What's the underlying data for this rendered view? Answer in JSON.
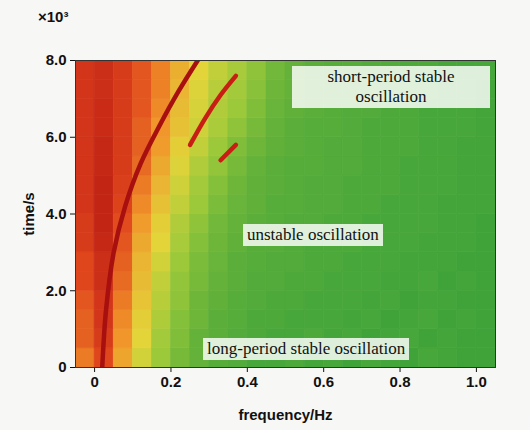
{
  "chart_data": {
    "type": "heatmap",
    "x_label": "frequency/Hz",
    "y_label": "time/s",
    "y_multiplier": "×10³",
    "xlim": [
      -0.05,
      1.05
    ],
    "xticks": [
      0,
      0.2,
      0.4,
      0.6,
      0.8,
      {
        "value": 1,
        "label": "1.0"
      }
    ],
    "ylim": [
      0,
      8
    ],
    "yticks": [
      0,
      {
        "value": 2,
        "label": "2.0"
      },
      {
        "value": 4,
        "label": "4.0"
      },
      {
        "value": 6,
        "label": "6.0"
      },
      {
        "value": 8,
        "label": "8.0"
      }
    ],
    "x_edges": [
      -0.05,
      0.0,
      0.05,
      0.1,
      0.15,
      0.2,
      0.25,
      0.3,
      0.35,
      0.4,
      0.45,
      0.5,
      0.55,
      0.6,
      0.65,
      0.7,
      0.75,
      0.8,
      0.85,
      0.9,
      0.95,
      1.0,
      1.05
    ],
    "y_edges": [
      0,
      0.5,
      1,
      1.5,
      2,
      2.5,
      3,
      3.5,
      4,
      4.5,
      5,
      5.5,
      6,
      6.5,
      7,
      7.5,
      8
    ],
    "cells": [
      [
        0.75,
        0.85,
        0.65,
        0.45,
        0.3,
        0.22,
        0.18,
        0.15,
        0.14,
        0.12,
        0.12,
        0.13,
        0.11,
        0.12,
        0.1,
        0.12,
        0.11,
        0.1,
        0.12,
        0.11,
        0.1,
        0.1
      ],
      [
        0.8,
        0.88,
        0.7,
        0.5,
        0.32,
        0.24,
        0.18,
        0.16,
        0.14,
        0.13,
        0.12,
        0.12,
        0.13,
        0.11,
        0.12,
        0.1,
        0.11,
        0.12,
        0.1,
        0.11,
        0.1,
        0.1
      ],
      [
        0.8,
        0.9,
        0.72,
        0.52,
        0.35,
        0.25,
        0.2,
        0.16,
        0.15,
        0.13,
        0.13,
        0.12,
        0.12,
        0.12,
        0.11,
        0.12,
        0.1,
        0.11,
        0.12,
        0.1,
        0.11,
        0.1
      ],
      [
        0.82,
        0.9,
        0.75,
        0.55,
        0.38,
        0.27,
        0.2,
        0.17,
        0.15,
        0.14,
        0.13,
        0.13,
        0.12,
        0.12,
        0.12,
        0.11,
        0.12,
        0.1,
        0.11,
        0.11,
        0.1,
        0.1
      ],
      [
        0.85,
        0.92,
        0.78,
        0.58,
        0.4,
        0.28,
        0.22,
        0.18,
        0.16,
        0.14,
        0.14,
        0.13,
        0.13,
        0.12,
        0.12,
        0.12,
        0.11,
        0.11,
        0.12,
        0.1,
        0.11,
        0.1
      ],
      [
        0.85,
        0.92,
        0.8,
        0.6,
        0.45,
        0.3,
        0.23,
        0.19,
        0.16,
        0.15,
        0.14,
        0.14,
        0.13,
        0.13,
        0.12,
        0.12,
        0.12,
        0.11,
        0.11,
        0.11,
        0.1,
        0.1
      ],
      [
        0.88,
        0.94,
        0.82,
        0.64,
        0.5,
        0.33,
        0.25,
        0.2,
        0.17,
        0.15,
        0.15,
        0.14,
        0.13,
        0.13,
        0.13,
        0.12,
        0.12,
        0.12,
        0.11,
        0.11,
        0.11,
        0.1
      ],
      [
        0.88,
        0.95,
        0.84,
        0.68,
        0.52,
        0.36,
        0.27,
        0.21,
        0.18,
        0.16,
        0.15,
        0.14,
        0.14,
        0.13,
        0.13,
        0.12,
        0.12,
        0.12,
        0.12,
        0.11,
        0.11,
        0.1
      ],
      [
        0.9,
        0.95,
        0.86,
        0.72,
        0.56,
        0.4,
        0.3,
        0.23,
        0.19,
        0.17,
        0.15,
        0.15,
        0.14,
        0.14,
        0.13,
        0.13,
        0.12,
        0.12,
        0.12,
        0.11,
        0.11,
        0.11
      ],
      [
        0.9,
        0.95,
        0.87,
        0.75,
        0.6,
        0.44,
        0.32,
        0.25,
        0.2,
        0.17,
        0.16,
        0.15,
        0.14,
        0.14,
        0.13,
        0.13,
        0.13,
        0.12,
        0.12,
        0.12,
        0.11,
        0.11
      ],
      [
        0.9,
        0.94,
        0.88,
        0.78,
        0.64,
        0.48,
        0.36,
        0.28,
        0.22,
        0.18,
        0.16,
        0.15,
        0.15,
        0.14,
        0.14,
        0.13,
        0.13,
        0.12,
        0.12,
        0.12,
        0.11,
        0.11
      ],
      [
        0.9,
        0.94,
        0.88,
        0.8,
        0.68,
        0.52,
        0.4,
        0.3,
        0.24,
        0.2,
        0.17,
        0.16,
        0.15,
        0.14,
        0.14,
        0.13,
        0.13,
        0.13,
        0.12,
        0.12,
        0.11,
        0.11
      ],
      [
        0.9,
        0.93,
        0.88,
        0.8,
        0.7,
        0.56,
        0.44,
        0.34,
        0.27,
        0.22,
        0.18,
        0.16,
        0.15,
        0.15,
        0.14,
        0.13,
        0.13,
        0.13,
        0.12,
        0.12,
        0.12,
        0.11
      ],
      [
        0.9,
        0.93,
        0.88,
        0.82,
        0.72,
        0.58,
        0.46,
        0.36,
        0.3,
        0.24,
        0.19,
        0.17,
        0.16,
        0.15,
        0.14,
        0.14,
        0.13,
        0.13,
        0.12,
        0.12,
        0.12,
        0.11
      ],
      [
        0.9,
        0.92,
        0.88,
        0.82,
        0.74,
        0.6,
        0.48,
        0.38,
        0.32,
        0.26,
        0.2,
        0.18,
        0.16,
        0.15,
        0.15,
        0.14,
        0.13,
        0.13,
        0.13,
        0.12,
        0.12,
        0.11
      ],
      [
        0.9,
        0.92,
        0.88,
        0.82,
        0.74,
        0.62,
        0.5,
        0.4,
        0.33,
        0.27,
        0.21,
        0.18,
        0.16,
        0.15,
        0.15,
        0.14,
        0.14,
        0.13,
        0.13,
        0.12,
        0.12,
        0.12
      ]
    ],
    "color_stops": [
      0.1,
      0.3,
      0.5,
      0.7,
      0.85,
      1.0
    ],
    "colors": [
      "#3fa33a",
      "#9cc93a",
      "#e3d43a",
      "#f0962a",
      "#e0461c",
      "#b51412"
    ],
    "ridges": [
      {
        "x": [
          0.02,
          0.03,
          0.05,
          0.08,
          0.12,
          0.17,
          0.22,
          0.27
        ],
        "y": [
          0,
          1.5,
          3,
          4.2,
          5.3,
          6.3,
          7.2,
          8.0
        ],
        "color": "#a80f0f"
      },
      {
        "x": [
          0.25,
          0.29,
          0.33,
          0.37
        ],
        "y": [
          5.8,
          6.5,
          7.1,
          7.6
        ],
        "color": "#c81f14"
      },
      {
        "x": [
          0.33,
          0.37
        ],
        "y": [
          5.4,
          5.8
        ],
        "color": "#c81f14"
      }
    ],
    "annotations": [
      "short-period stable oscillation",
      "unstable oscillation",
      "long-period stable oscillation"
    ]
  }
}
